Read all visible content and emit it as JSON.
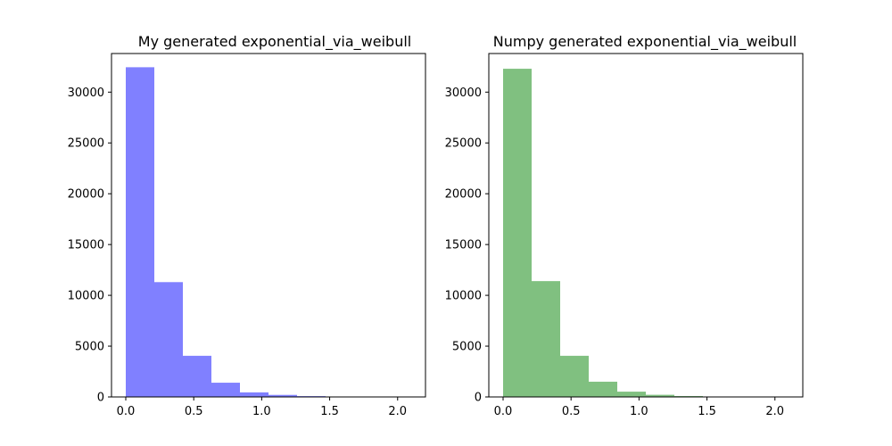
{
  "chart_data": [
    {
      "type": "bar",
      "title": "My generated exponential_via_weibull",
      "xlabel": "",
      "ylabel": "",
      "color": "#8080ff",
      "xlim": [
        -0.105,
        2.205
      ],
      "ylim": [
        0,
        33800
      ],
      "xticks": [
        0.0,
        0.5,
        1.0,
        1.5,
        2.0
      ],
      "xtick_labels": [
        "0.0",
        "0.5",
        "1.0",
        "1.5",
        "2.0"
      ],
      "yticks": [
        0,
        5000,
        10000,
        15000,
        20000,
        25000,
        30000
      ],
      "ytick_labels": [
        "0",
        "5000",
        "10000",
        "15000",
        "20000",
        "25000",
        "30000"
      ],
      "bin_edges": [
        0.0,
        0.21,
        0.42,
        0.63,
        0.84,
        1.05,
        1.26,
        1.47,
        1.68,
        1.89,
        2.1
      ],
      "values": [
        32450,
        11300,
        4050,
        1400,
        450,
        200,
        80,
        30,
        10,
        5
      ]
    },
    {
      "type": "bar",
      "title": "Numpy generated exponential_via_weibull",
      "xlabel": "",
      "ylabel": "",
      "color": "#80c080",
      "xlim": [
        -0.105,
        2.205
      ],
      "ylim": [
        0,
        33800
      ],
      "xticks": [
        0.0,
        0.5,
        1.0,
        1.5,
        2.0
      ],
      "xtick_labels": [
        "0.0",
        "0.5",
        "1.0",
        "1.5",
        "2.0"
      ],
      "yticks": [
        0,
        5000,
        10000,
        15000,
        20000,
        25000,
        30000
      ],
      "ytick_labels": [
        "0",
        "5000",
        "10000",
        "15000",
        "20000",
        "25000",
        "30000"
      ],
      "bin_edges": [
        0.0,
        0.21,
        0.42,
        0.63,
        0.84,
        1.05,
        1.26,
        1.47,
        1.68,
        1.89,
        2.1
      ],
      "values": [
        32300,
        11400,
        4050,
        1500,
        520,
        210,
        90,
        35,
        12,
        5
      ]
    }
  ]
}
